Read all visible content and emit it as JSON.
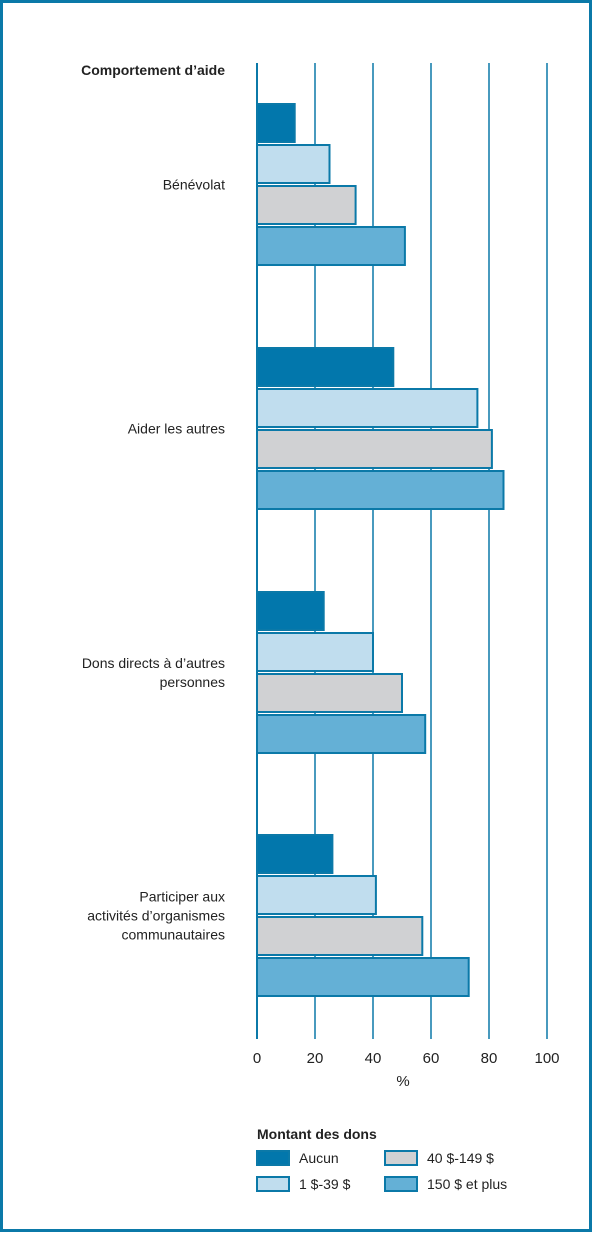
{
  "chart_data": {
    "type": "bar",
    "orientation": "horizontal",
    "title": "Comportement d’aide",
    "xlabel": "%",
    "xlim": [
      0,
      100
    ],
    "xticks": [
      "0",
      "20",
      "40",
      "60",
      "80",
      "100"
    ],
    "grid": true,
    "categories": [
      {
        "lines": [
          "Bénévolat"
        ]
      },
      {
        "lines": [
          "Aider les autres"
        ]
      },
      {
        "lines": [
          "Dons directs à d’autres",
          "personnes"
        ]
      },
      {
        "lines": [
          "Participer aux",
          "activités d’organismes",
          "communautaires"
        ]
      }
    ],
    "series": [
      {
        "name": "Aucun",
        "values": [
          13,
          47,
          23,
          26
        ]
      },
      {
        "name": "1 $-39 $",
        "values": [
          25,
          76,
          40,
          41
        ]
      },
      {
        "name": "40 $-149 $",
        "values": [
          34,
          81,
          50,
          57
        ]
      },
      {
        "name": "150 $ et plus",
        "values": [
          51,
          85,
          58,
          73
        ]
      }
    ],
    "legend": {
      "title": "Montant des dons",
      "placement": "bottom"
    }
  },
  "colors": {
    "frame": "#0b79a8",
    "axis": "#0b79a8",
    "bar_stroke": "#0b79a8",
    "series_fill": [
      "#0277ac",
      "#c0ddee",
      "#d0d1d3",
      "#64b0d6"
    ]
  }
}
